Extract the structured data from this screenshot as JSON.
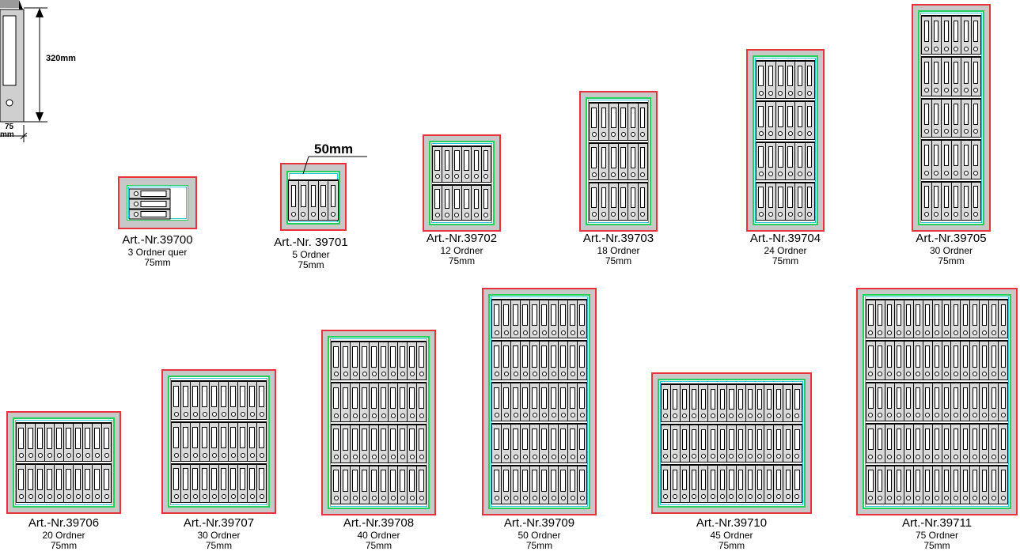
{
  "dimension_labels": {
    "height": "320mm",
    "width_top": "75",
    "width_bottom": "mm",
    "callout": "50mm"
  },
  "cabinets": [
    {
      "art": "Art.-Nr.39700",
      "count": "3 Ordner quer",
      "size": "75mm"
    },
    {
      "art": "Art.-Nr. 39701",
      "count": "5 Ordner",
      "size": "75mm"
    },
    {
      "art": "Art.-Nr.39702",
      "count": "12 Ordner",
      "size": "75mm"
    },
    {
      "art": "Art.-Nr.39703",
      "count": "18 Ordner",
      "size": "75mm"
    },
    {
      "art": "Art.-Nr.39704",
      "count": "24 Ordner",
      "size": "75mm"
    },
    {
      "art": "Art.-Nr.39705",
      "count": "30 Ordner",
      "size": "75mm"
    },
    {
      "art": "Art.-Nr.39706",
      "count": "20 Ordner",
      "size": "75mm"
    },
    {
      "art": "Art.-Nr.39707",
      "count": "30 Ordner",
      "size": "75mm"
    },
    {
      "art": "Art.-Nr.39708",
      "count": "40 Ordner",
      "size": "75mm"
    },
    {
      "art": "Art.-Nr.39709",
      "count": "50 Ordner",
      "size": "75mm"
    },
    {
      "art": "Art.-Nr.39710",
      "count": "45 Ordner",
      "size": "75mm"
    },
    {
      "art": "Art.-Nr.39711",
      "count": "75 Ordner",
      "size": "75mm"
    }
  ],
  "colors": {
    "outer_frame": "#e8323c",
    "inner_frame": "#22d05a",
    "inner_line": "#27c7d9",
    "body": "#c8c8c8"
  }
}
